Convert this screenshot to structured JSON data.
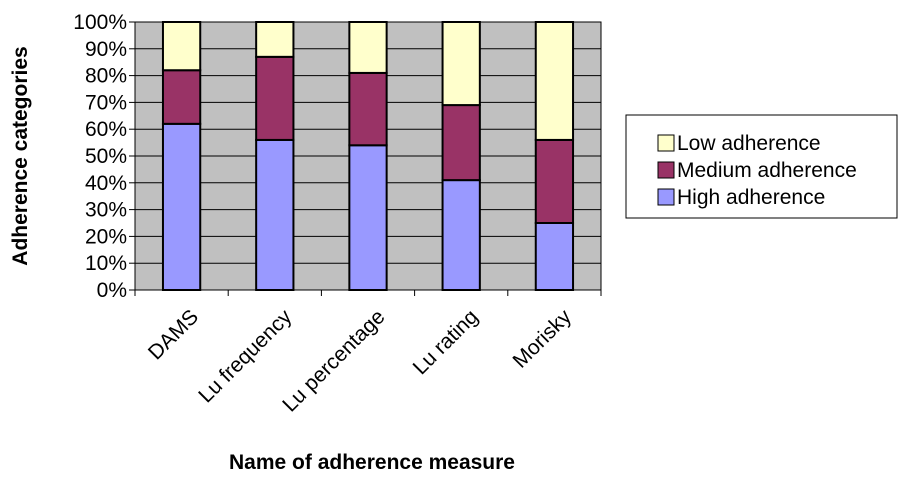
{
  "chart_data": {
    "type": "bar",
    "stacked": true,
    "percent_stacked": true,
    "categories": [
      "DAMS",
      "Lu frequency",
      "Lu percentage",
      "Lu rating",
      "Morisky"
    ],
    "series": [
      {
        "name": "High adherence",
        "values": [
          62,
          56,
          54,
          41,
          25
        ],
        "color": "#9999ff"
      },
      {
        "name": "Medium adherence",
        "values": [
          20,
          31,
          27,
          28,
          31
        ],
        "color": "#993366"
      },
      {
        "name": "Low adherence",
        "values": [
          18,
          13,
          19,
          31,
          44
        ],
        "color": "#ffffcc"
      }
    ],
    "xlabel": "Name of adherence measure",
    "ylabel": "Adherence categories",
    "ylim": [
      0,
      100
    ],
    "yticks": [
      "0%",
      "10%",
      "20%",
      "30%",
      "40%",
      "50%",
      "60%",
      "70%",
      "80%",
      "90%",
      "100%"
    ],
    "legend_order": [
      "Low adherence",
      "Medium adherence",
      "High adherence"
    ],
    "legend_position": "right",
    "grid": true,
    "plot_background": "#c0c0c0"
  }
}
